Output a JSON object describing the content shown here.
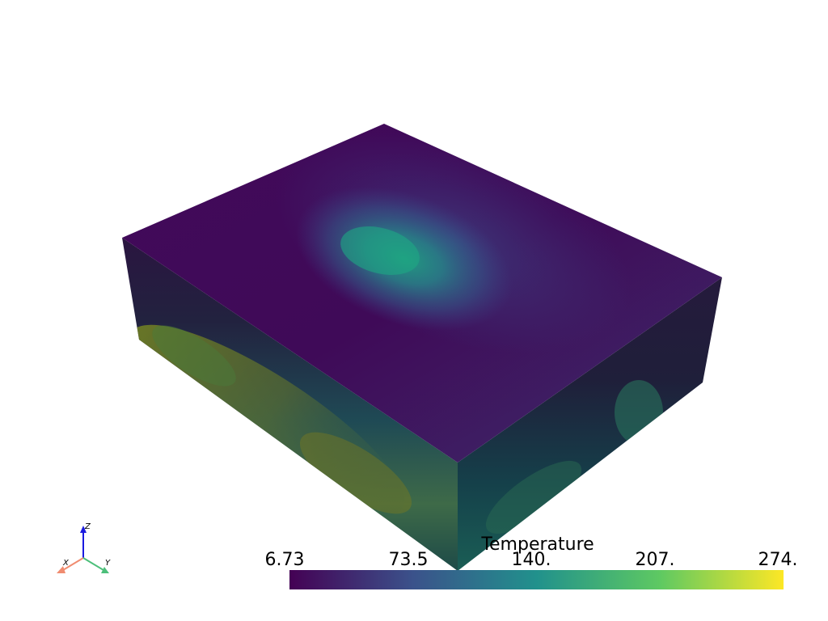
{
  "colorbar": {
    "title": "Temperature",
    "ticks": [
      "6.73",
      "73.5",
      "140.",
      "207.",
      "274."
    ],
    "colormap": [
      "#440154",
      "#3b528b",
      "#21918c",
      "#5ec962",
      "#fde725"
    ]
  },
  "orientation_widget": {
    "x_label": "X",
    "y_label": "Y",
    "z_label": "Z",
    "x_color": "#f08c70",
    "y_color": "#4cbf7a",
    "z_color": "#1a1ae0"
  },
  "colors": {
    "top_dark": "#45075a",
    "side_dark": "#241a3a",
    "hot_spot": "#1e9e82",
    "warm_bottom": "#7b8a22"
  }
}
